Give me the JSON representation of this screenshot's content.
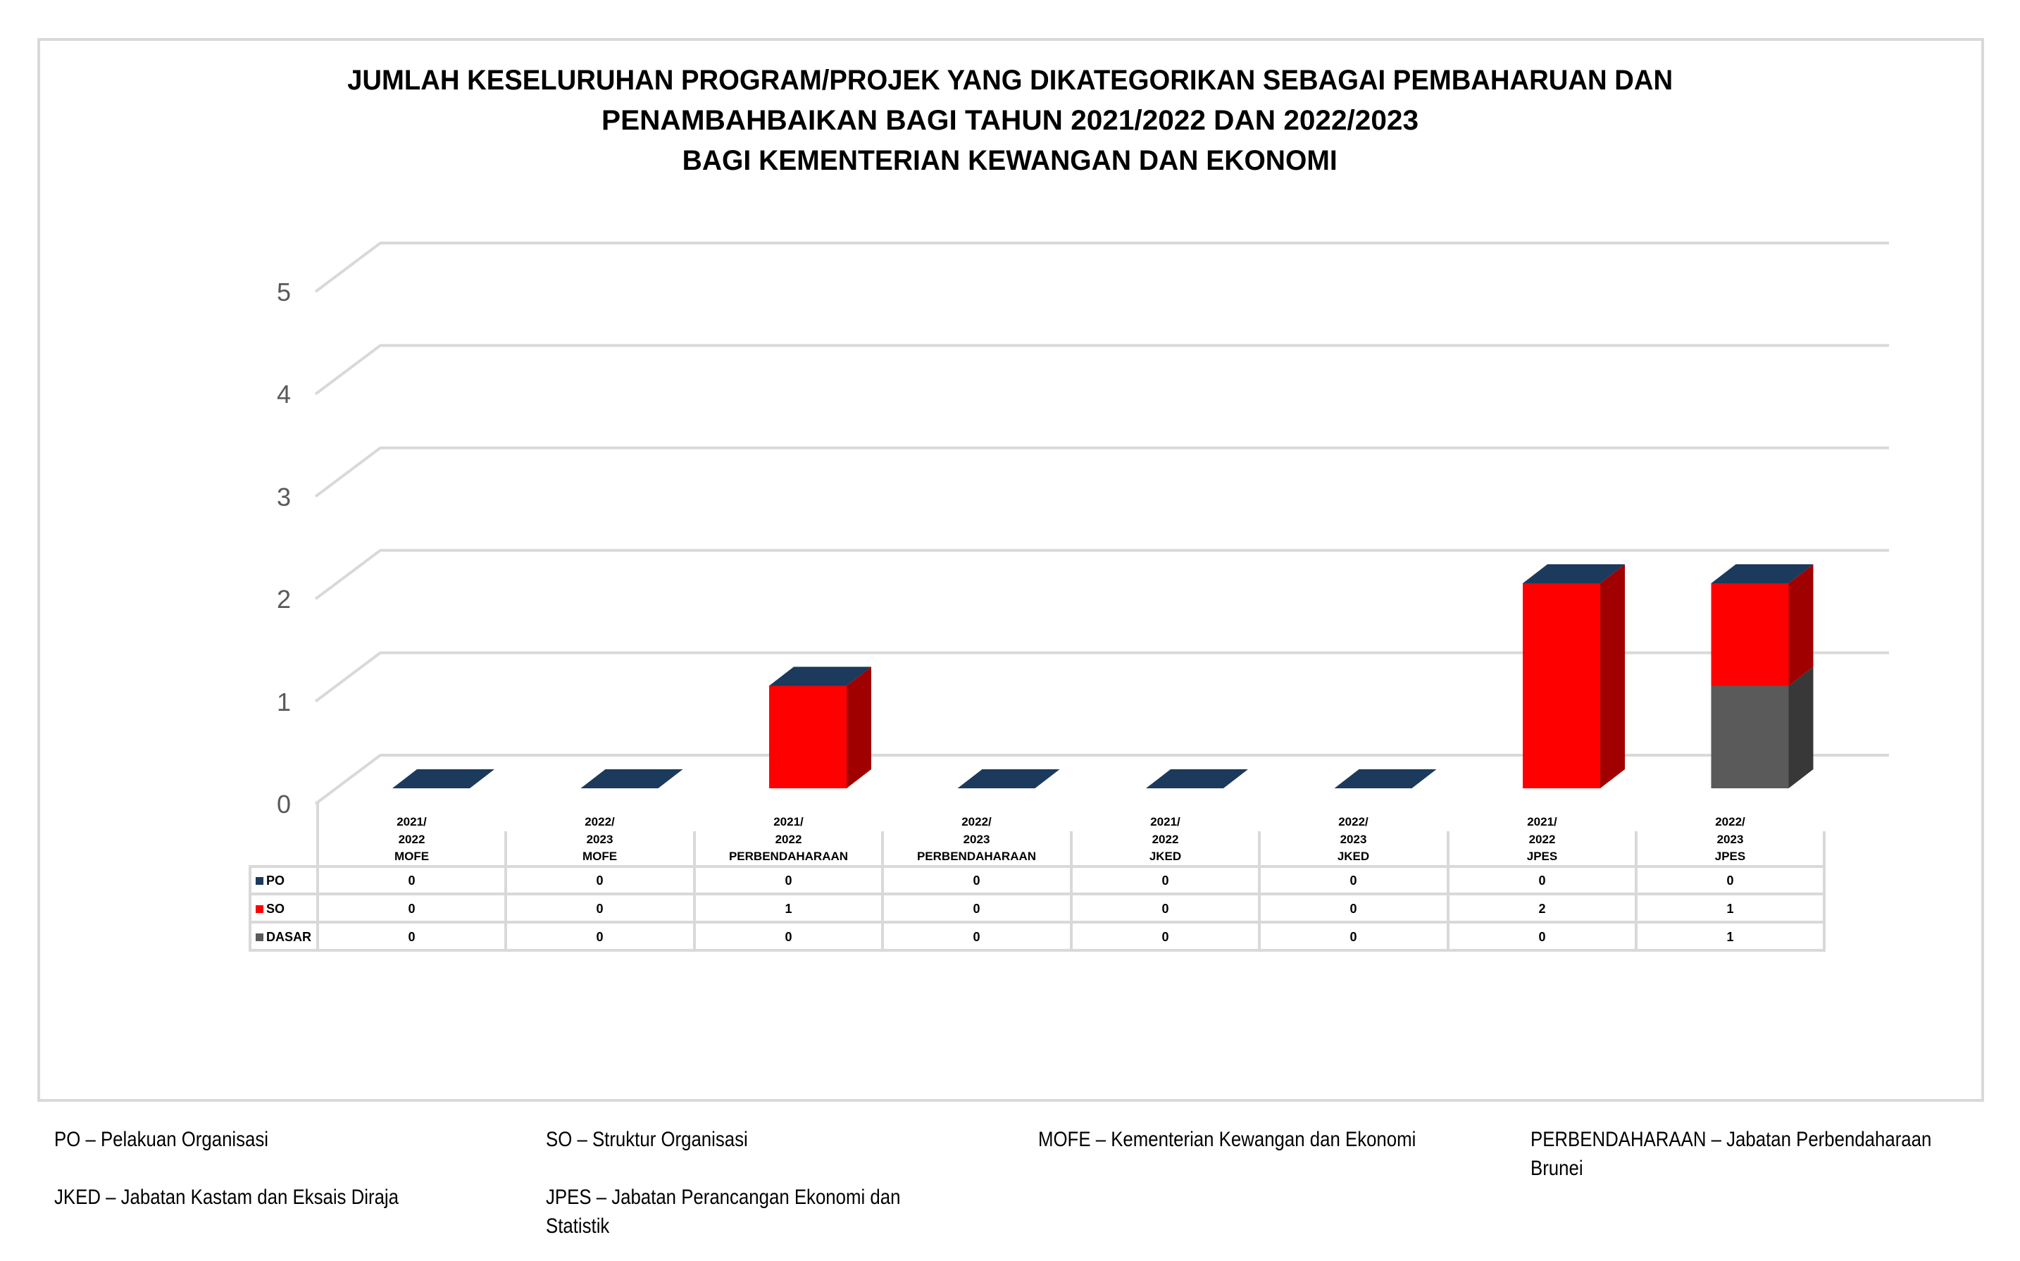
{
  "title": {
    "line1": "JUMLAH KESELURUHAN PROGRAM/PROJEK YANG DIKATEGORIKAN SEBAGAI PEMBAHARUAN DAN",
    "line2": "PENAMBAHBAIKAN BAGI TAHUN 2021/2022 DAN 2022/2023",
    "line3": "BAGI KEMENTERIAN KEWANGAN DAN EKONOMI"
  },
  "colors": {
    "PO": "#1b3a5c",
    "SO": "#ff0000",
    "SO_side": "#a00000",
    "DASAR": "#5a5a5a",
    "DASAR_side": "#383838",
    "gridline": "#d9d9d9",
    "axis_label": "#595959"
  },
  "y_axis": {
    "ticks": [
      "0",
      "1",
      "2",
      "3",
      "4",
      "5"
    ]
  },
  "table": {
    "columns": [
      {
        "l1": "2021/",
        "l2": "2022",
        "l3": "MOFE"
      },
      {
        "l1": "2022/",
        "l2": "2023",
        "l3": "MOFE"
      },
      {
        "l1": "2021/",
        "l2": "2022",
        "l3": "PERBENDAHARAAN"
      },
      {
        "l1": "2022/",
        "l2": "2023",
        "l3": "PERBENDAHARAAN"
      },
      {
        "l1": "2021/",
        "l2": "2022",
        "l3": "JKED"
      },
      {
        "l1": "2022/",
        "l2": "2023",
        "l3": "JKED"
      },
      {
        "l1": "2021/",
        "l2": "2022",
        "l3": "JPES"
      },
      {
        "l1": "2022/",
        "l2": "2023",
        "l3": "JPES"
      }
    ],
    "rows": [
      {
        "label": "PO",
        "values": [
          "0",
          "0",
          "0",
          "0",
          "0",
          "0",
          "0",
          "0"
        ]
      },
      {
        "label": "SO",
        "values": [
          "0",
          "0",
          "1",
          "0",
          "0",
          "0",
          "2",
          "1"
        ]
      },
      {
        "label": "DASAR",
        "values": [
          "0",
          "0",
          "0",
          "0",
          "0",
          "0",
          "0",
          "1"
        ]
      }
    ]
  },
  "footer": {
    "po": "PO – Pelakuan Organisasi",
    "so": "SO – Struktur Organisasi",
    "mofe": "MOFE – Kementerian Kewangan dan Ekonomi",
    "perb_line1": "PERBENDAHARAAN – Jabatan Perbendaharaan",
    "perb_line2": "Brunei",
    "jked": "JKED – Jabatan Kastam dan Eksais Diraja",
    "jpes_line1": "JPES – Jabatan Perancangan Ekonomi dan",
    "jpes_line2": "Statistik"
  },
  "chart_data": {
    "type": "bar",
    "stacked": true,
    "style": "3d-column",
    "title": "JUMLAH KESELURUHAN PROGRAM/PROJEK YANG DIKATEGORIKAN SEBAGAI PEMBAHARUAN DAN PENAMBAHBAIKAN BAGI TAHUN 2021/2022 DAN 2022/2023 BAGI KEMENTERIAN KEWANGAN DAN EKONOMI",
    "categories": [
      "2021/2022 MOFE",
      "2022/2023 MOFE",
      "2021/2022 PERBENDAHARAAN",
      "2022/2023 PERBENDAHARAAN",
      "2021/2022 JKED",
      "2022/2023 JKED",
      "2021/2022 JPES",
      "2022/2023 JPES"
    ],
    "series": [
      {
        "name": "PO",
        "color": "#1b3a5c",
        "values": [
          0,
          0,
          0,
          0,
          0,
          0,
          0,
          0
        ]
      },
      {
        "name": "SO",
        "color": "#ff0000",
        "values": [
          0,
          0,
          1,
          0,
          0,
          0,
          2,
          1
        ]
      },
      {
        "name": "DASAR",
        "color": "#5a5a5a",
        "values": [
          0,
          0,
          0,
          0,
          0,
          0,
          0,
          1
        ]
      }
    ],
    "stack_order_bottom_to_top": [
      "DASAR",
      "SO",
      "PO"
    ],
    "xlabel": "",
    "ylabel": "",
    "ylim": [
      0,
      5
    ],
    "yticks": [
      0,
      1,
      2,
      3,
      4,
      5
    ],
    "grid": true,
    "legend": "data table below chart"
  }
}
